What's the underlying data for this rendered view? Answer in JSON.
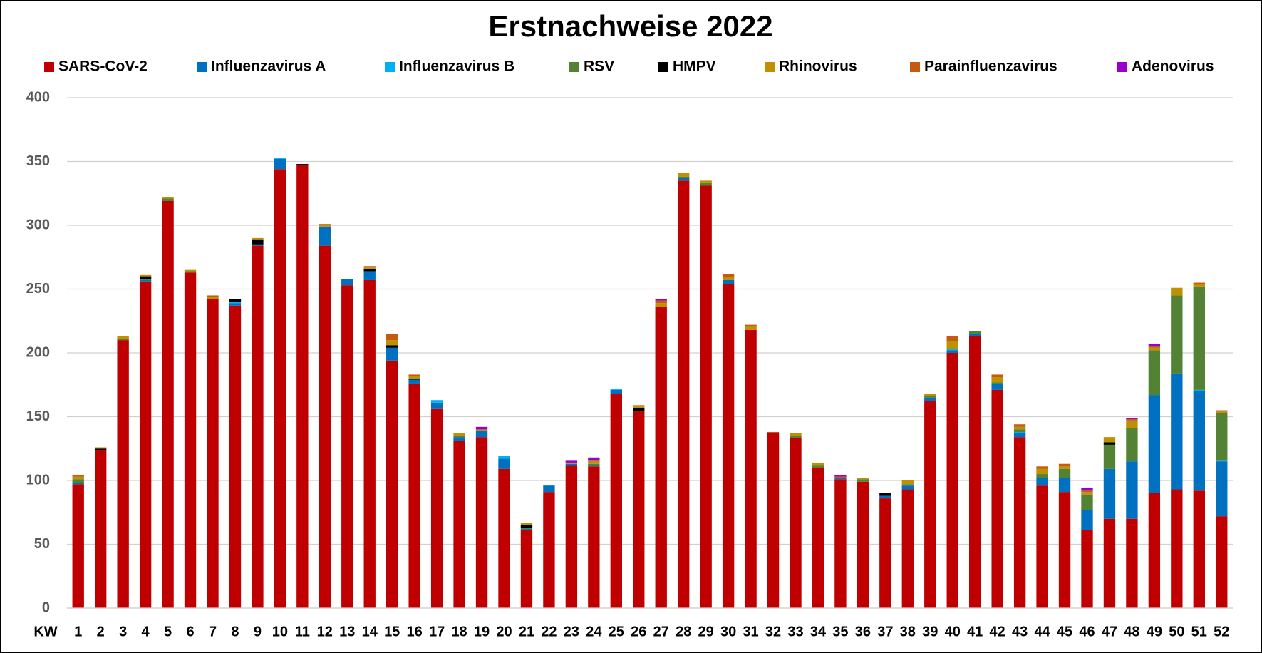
{
  "chart_data": {
    "type": "stacked_bar",
    "title": "Erstnachweise 2022",
    "x_label": "KW",
    "categories": [
      "1",
      "2",
      "3",
      "4",
      "5",
      "6",
      "7",
      "8",
      "9",
      "10",
      "11",
      "12",
      "13",
      "14",
      "15",
      "16",
      "17",
      "18",
      "19",
      "20",
      "21",
      "22",
      "23",
      "24",
      "25",
      "26",
      "27",
      "28",
      "29",
      "30",
      "31",
      "32",
      "33",
      "34",
      "35",
      "36",
      "37",
      "38",
      "39",
      "40",
      "41",
      "42",
      "43",
      "44",
      "45",
      "46",
      "47",
      "48",
      "49",
      "50",
      "51",
      "52"
    ],
    "series": [
      {
        "name": "SARS-CoV-2",
        "color": "#c00000",
        "values": [
          97,
          124,
          210,
          256,
          319,
          263,
          242,
          237,
          284,
          344,
          347,
          284,
          253,
          257,
          194,
          176,
          156,
          131,
          134,
          109,
          61,
          91,
          112,
          111,
          168,
          154,
          236,
          335,
          331,
          254,
          218,
          137,
          133,
          110,
          101,
          99,
          86,
          93,
          162,
          200,
          213,
          171,
          134,
          96,
          91,
          61,
          70,
          70,
          90,
          93,
          92,
          72
        ]
      },
      {
        "name": "Influenzavirus A",
        "color": "#0070c0",
        "values": [
          1,
          0,
          0,
          1,
          0,
          0,
          0,
          2,
          1,
          8,
          0,
          15,
          5,
          7,
          10,
          3,
          5,
          3,
          5,
          8,
          1,
          5,
          1,
          1,
          3,
          0,
          0,
          2,
          0,
          3,
          0,
          0,
          0,
          0,
          1,
          0,
          2,
          3,
          3,
          2,
          2,
          5,
          3,
          6,
          11,
          16,
          39,
          45,
          77,
          91,
          78,
          43
        ]
      },
      {
        "name": "Influenzavirus B",
        "color": "#00b0f0",
        "values": [
          0,
          0,
          0,
          0,
          0,
          0,
          0,
          1,
          0,
          1,
          0,
          0,
          0,
          0,
          0,
          0,
          2,
          0,
          0,
          2,
          0,
          0,
          0,
          0,
          1,
          0,
          0,
          0,
          0,
          0,
          0,
          0,
          0,
          0,
          0,
          0,
          0,
          0,
          0,
          1,
          0,
          0,
          1,
          0,
          0,
          0,
          0,
          0,
          0,
          0,
          1,
          1
        ]
      },
      {
        "name": "RSV",
        "color": "#548235",
        "values": [
          3,
          0,
          1,
          1,
          2,
          1,
          0,
          0,
          0,
          0,
          0,
          0,
          0,
          0,
          0,
          0,
          0,
          1,
          0,
          0,
          1,
          0,
          0,
          1,
          0,
          0,
          0,
          1,
          2,
          0,
          0,
          0,
          2,
          2,
          0,
          2,
          0,
          1,
          1,
          0,
          2,
          1,
          2,
          3,
          7,
          12,
          19,
          26,
          35,
          61,
          81,
          37
        ]
      },
      {
        "name": "HMPV",
        "color": "#000000",
        "values": [
          0,
          1,
          0,
          2,
          0,
          0,
          0,
          2,
          4,
          0,
          1,
          0,
          0,
          2,
          2,
          1,
          0,
          0,
          0,
          0,
          2,
          0,
          0,
          0,
          0,
          3,
          0,
          0,
          0,
          0,
          0,
          0,
          0,
          0,
          0,
          0,
          2,
          0,
          0,
          0,
          0,
          0,
          0,
          0,
          0,
          0,
          2,
          0,
          0,
          0,
          0,
          0
        ]
      },
      {
        "name": "Rhinovirus",
        "color": "#bf9000",
        "values": [
          2,
          1,
          2,
          1,
          1,
          1,
          2,
          0,
          1,
          0,
          0,
          1,
          0,
          1,
          4,
          2,
          0,
          2,
          1,
          0,
          2,
          0,
          1,
          3,
          0,
          1,
          3,
          3,
          2,
          2,
          3,
          0,
          2,
          2,
          0,
          1,
          0,
          3,
          2,
          6,
          0,
          4,
          2,
          4,
          2,
          2,
          4,
          6,
          2,
          6,
          2,
          1
        ]
      },
      {
        "name": "Parainfluenzavirus",
        "color": "#c55a11",
        "values": [
          1,
          0,
          0,
          0,
          0,
          0,
          1,
          0,
          0,
          0,
          0,
          1,
          0,
          1,
          5,
          1,
          0,
          0,
          0,
          0,
          0,
          0,
          0,
          0,
          0,
          1,
          2,
          0,
          0,
          3,
          1,
          1,
          0,
          0,
          1,
          0,
          0,
          0,
          0,
          4,
          0,
          2,
          2,
          2,
          2,
          1,
          0,
          1,
          1,
          0,
          1,
          1
        ]
      },
      {
        "name": "Adenovirus",
        "color": "#9900cc",
        "values": [
          0,
          0,
          0,
          0,
          0,
          0,
          0,
          0,
          0,
          0,
          0,
          0,
          0,
          0,
          0,
          0,
          0,
          0,
          2,
          0,
          0,
          0,
          2,
          2,
          0,
          0,
          1,
          0,
          0,
          0,
          0,
          0,
          0,
          0,
          1,
          0,
          0,
          0,
          0,
          0,
          0,
          0,
          0,
          0,
          0,
          2,
          0,
          1,
          2,
          0,
          0,
          0
        ]
      }
    ],
    "ylim": [
      0,
      400
    ],
    "yticks": [
      0,
      50,
      100,
      150,
      200,
      250,
      300,
      350,
      400
    ],
    "grid": true,
    "legend": "top"
  }
}
